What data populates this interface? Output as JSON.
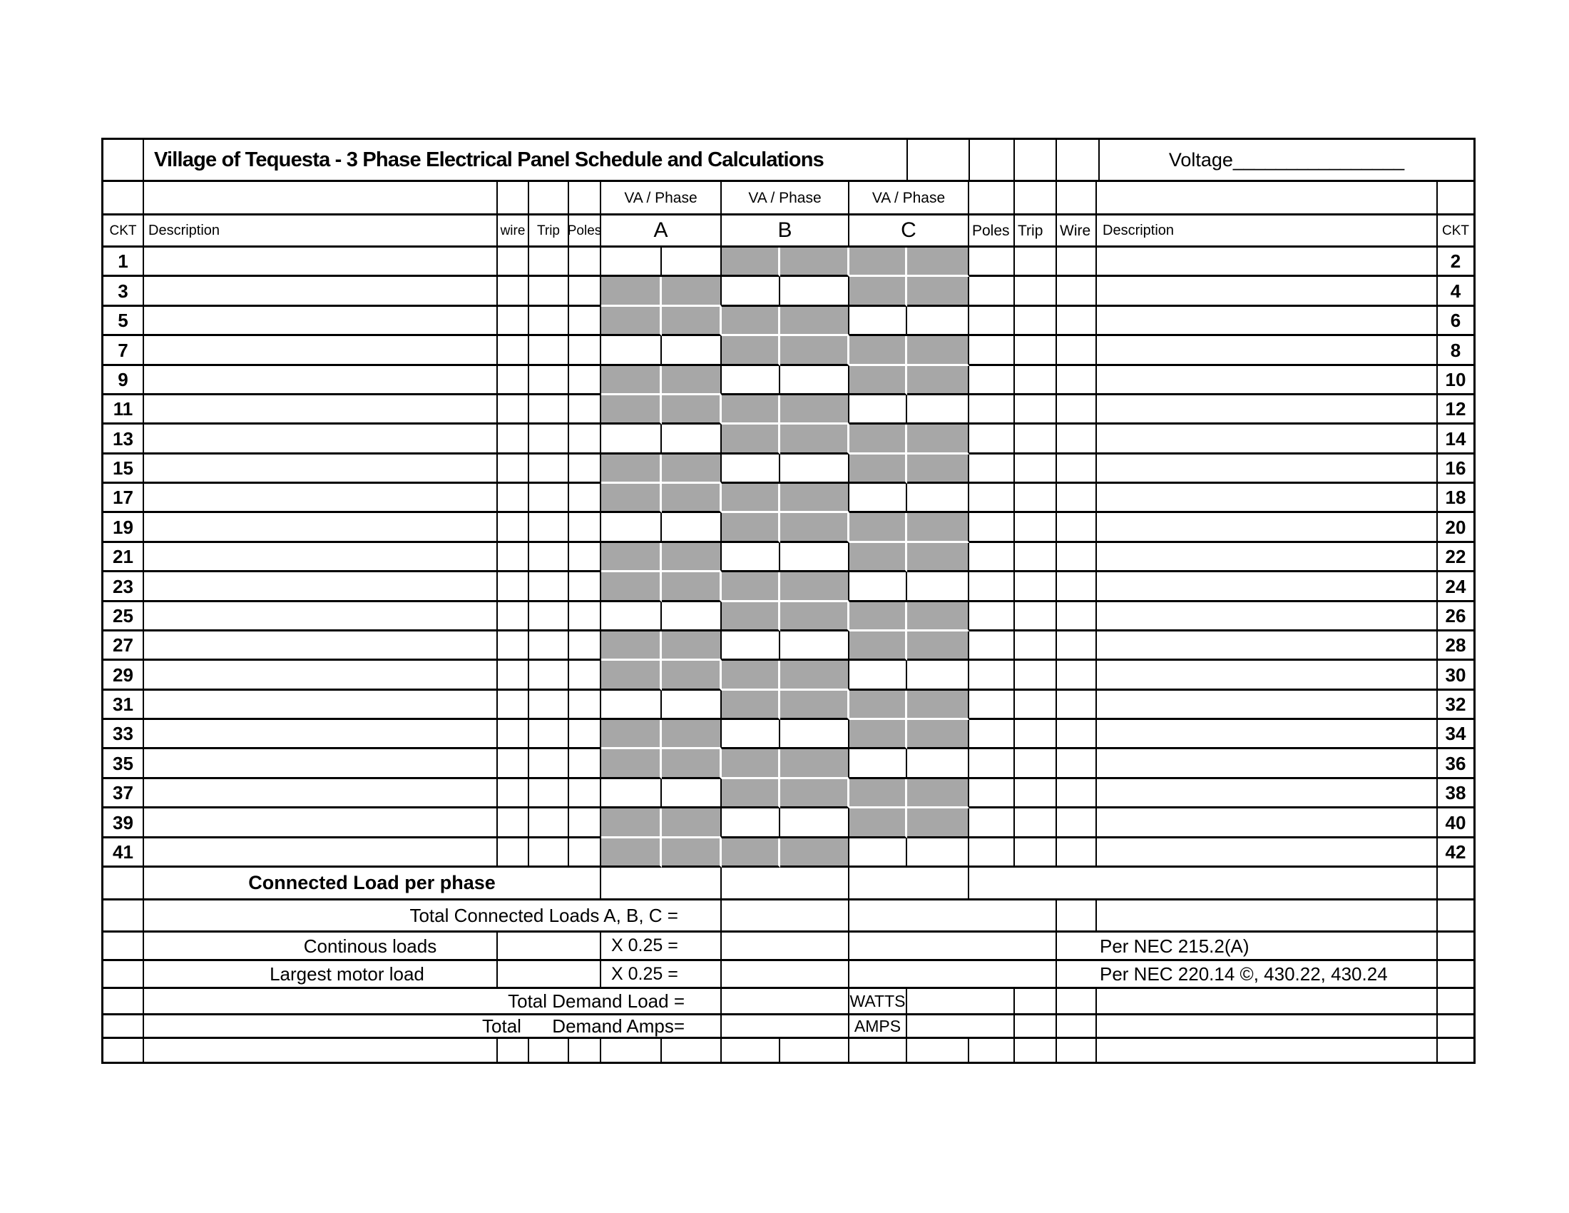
{
  "title": "Village of Tequesta - 3 Phase Electrical Panel Schedule and Calculations",
  "voltage": "Voltage________________",
  "columns": {
    "ckt": "CKT",
    "description": "Description",
    "wire_lower": "wire",
    "wire": "Wire",
    "trip": "Trip",
    "poles": "Poles",
    "va_phase": "VA / Phase",
    "phase_a": "A",
    "phase_b": "B",
    "phase_c": "C"
  },
  "rows": [
    {
      "left": "1",
      "right": "2",
      "active": "A"
    },
    {
      "left": "3",
      "right": "4",
      "active": "B"
    },
    {
      "left": "5",
      "right": "6",
      "active": "C"
    },
    {
      "left": "7",
      "right": "8",
      "active": "A"
    },
    {
      "left": "9",
      "right": "10",
      "active": "B"
    },
    {
      "left": "11",
      "right": "12",
      "active": "C"
    },
    {
      "left": "13",
      "right": "14",
      "active": "A"
    },
    {
      "left": "15",
      "right": "16",
      "active": "B"
    },
    {
      "left": "17",
      "right": "18",
      "active": "C"
    },
    {
      "left": "19",
      "right": "20",
      "active": "A"
    },
    {
      "left": "21",
      "right": "22",
      "active": "B"
    },
    {
      "left": "23",
      "right": "24",
      "active": "C"
    },
    {
      "left": "25",
      "right": "26",
      "active": "A"
    },
    {
      "left": "27",
      "right": "28",
      "active": "B"
    },
    {
      "left": "29",
      "right": "30",
      "active": "C"
    },
    {
      "left": "31",
      "right": "32",
      "active": "A"
    },
    {
      "left": "33",
      "right": "34",
      "active": "B"
    },
    {
      "left": "35",
      "right": "36",
      "active": "C"
    },
    {
      "left": "37",
      "right": "38",
      "active": "A"
    },
    {
      "left": "39",
      "right": "40",
      "active": "B"
    },
    {
      "left": "41",
      "right": "42",
      "active": "C"
    }
  ],
  "footer": {
    "connected_load": "Connected Load per phase",
    "total_connected": "Total Connected Loads A, B, C =",
    "continuous_loads": "Continous loads",
    "largest_motor": "Largest motor load",
    "x025_row1": "X 0.25 =",
    "x025_row2": "X 0.25 =",
    "per_nec_1": "Per NEC 215.2(A)",
    "per_nec_2": "Per NEC 220.14 ©, 430.22, 430.24",
    "total_demand_load": "Total Demand Load =",
    "total_demand_amps": "Total      Demand Amps=",
    "watts": "WATTS",
    "amps": "AMPS"
  },
  "colors": {
    "shaded_cell": "#a7a7a7",
    "grid_line": "#000000",
    "background": "#ffffff"
  }
}
